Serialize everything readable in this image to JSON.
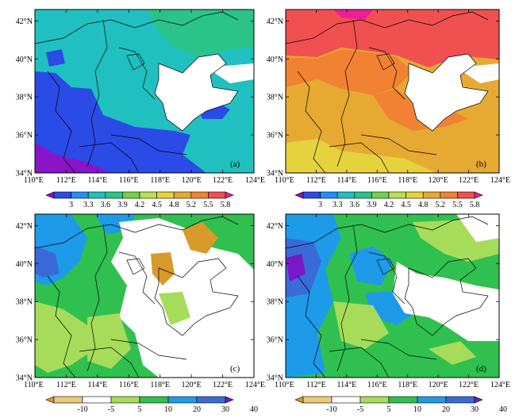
{
  "figure": {
    "panels": [
      {
        "id": "a",
        "label": "(a)",
        "field": "index",
        "legend": "top"
      },
      {
        "id": "b",
        "label": "(b)",
        "field": "index",
        "legend": "top"
      },
      {
        "id": "c",
        "label": "(c)",
        "field": "percent",
        "legend": "bottom"
      },
      {
        "id": "d",
        "label": "(d)",
        "field": "percent",
        "legend": "bottom"
      }
    ],
    "lon_ticks": [
      "110°E",
      "112°E",
      "114°E",
      "116°E",
      "118°E",
      "120°E",
      "122°E",
      "124°E"
    ],
    "lat_ticks": [
      "34°N",
      "36°N",
      "38°N",
      "40°N",
      "42°N"
    ],
    "legend_top": {
      "labels": [
        "3",
        "3.3",
        "3.6",
        "3.9",
        "4.2",
        "4.5",
        "4.8",
        "5.2",
        "5.5",
        "5.8"
      ],
      "colors": [
        "#8a14c8",
        "#2a4be6",
        "#1e90ff",
        "#20c0c0",
        "#2ac48a",
        "#6ed24a",
        "#b8e050",
        "#e6d23c",
        "#e6aa32",
        "#f08232",
        "#f05050",
        "#f01e96"
      ]
    },
    "legend_bottom": {
      "labels": [
        "-10",
        "-5",
        "5",
        "10",
        "20",
        "30",
        "40"
      ],
      "colors": [
        "#d89a2a",
        "#eec878",
        "#ffffff",
        "#a6dc5a",
        "#30c050",
        "#1e9be8",
        "#3a6ad8",
        "#7818c8"
      ]
    }
  }
}
